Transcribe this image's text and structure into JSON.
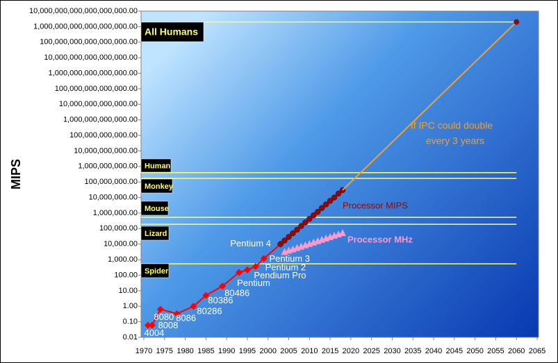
{
  "chart_data": {
    "type": "line",
    "y_label": "MIPS",
    "log_scale": true,
    "grid": false,
    "xlim": [
      1970,
      2065
    ],
    "xticks": [
      1970,
      1975,
      1980,
      1985,
      1990,
      1995,
      2000,
      2005,
      2010,
      2015,
      2020,
      2025,
      2030,
      2035,
      2040,
      2045,
      2050,
      2055,
      2060,
      2065
    ],
    "ylim": [
      0.01,
      1e+19
    ],
    "yticks": [
      0.01,
      {
        "value": 0.1,
        "label": "0.10"
      },
      {
        "value": 1,
        "label": "1.00"
      },
      {
        "value": 10,
        "label": "10.00"
      },
      {
        "value": 100,
        "label": "100.00"
      },
      {
        "value": 1000,
        "label": "1,000.00"
      },
      {
        "value": 10000,
        "label": "10,000.00"
      },
      {
        "value": 100000,
        "label": "100,000.00"
      },
      {
        "value": 1000000,
        "label": "1,000,000.00"
      },
      {
        "value": 10000000,
        "label": "10,000,000.00"
      },
      {
        "value": 100000000,
        "label": "100,000,000.00"
      },
      {
        "value": 1000000000,
        "label": "1,000,000,000.00"
      },
      {
        "value": 10000000000,
        "label": "10,000,000,000.00"
      },
      {
        "value": 100000000000,
        "label": "100,000,000,000.00"
      },
      {
        "value": 1000000000000,
        "label": "1,000,000,000,000.00"
      },
      {
        "value": 10000000000000.0,
        "label": "10,000,000,000,000.00"
      },
      {
        "value": 100000000000000.0,
        "label": "100,000,000,000,000.00"
      },
      {
        "value": 1000000000000000.0,
        "label": "1,000,000,000,000,000.00"
      },
      {
        "value": 1e+16,
        "label": "10,000,000,000,000,000.00"
      },
      {
        "value": 1e+17,
        "label": "100,000,000,000,000,000.00"
      },
      {
        "value": 1e+18,
        "label": "1,000,000,000,000,000,000.00"
      },
      {
        "value": 1e+19,
        "label": "10,000,000,000,000,000,000.00"
      }
    ],
    "series": [
      {
        "color": "#ff0000",
        "marker": "diamond",
        "x": [
          1971,
          1972,
          1974,
          1978,
          1982,
          1985,
          1989,
          1993,
          1995,
          1997,
          1999,
          2003
        ],
        "values": [
          0.06,
          0.06,
          0.64,
          0.33,
          1,
          5,
          20,
          150,
          220,
          360,
          1200,
          10000
        ],
        "point_labels": [
          "4004",
          "8008",
          "8080",
          "8086",
          "80286",
          "80386",
          "80486",
          "Pentium",
          "Pendium Pro",
          "Pentium 2",
          "Pentium 3",
          "Pentium 4"
        ]
      },
      {
        "name": "Processor MIPS",
        "color": "#8b0a0a",
        "marker": "circle",
        "x": [
          2003,
          2004,
          2005,
          2006,
          2007,
          2008,
          2009,
          2010,
          2011,
          2012,
          2013,
          2014,
          2015,
          2016,
          2017,
          2018
        ],
        "values": [
          10000,
          17000,
          29000,
          50000,
          85000,
          145000,
          250000,
          420000,
          720000,
          1200000,
          2100000,
          3600000,
          6100000,
          10000000,
          18000000,
          30000000
        ]
      },
      {
        "name": "Processor MHz",
        "color": "#ff99cc",
        "marker": "triangle",
        "x": [
          2004,
          2005,
          2006,
          2007,
          2008,
          2009,
          2010,
          2011,
          2012,
          2013,
          2014,
          2015,
          2016,
          2017,
          2018
        ],
        "values": [
          3000,
          3700,
          4500,
          5500,
          6700,
          8200,
          10000,
          12300,
          15000,
          18400,
          22500,
          27500,
          33600,
          41000,
          50000
        ]
      },
      {
        "color": "#f0a030",
        "marker": "end",
        "x": [
          2018,
          2060
        ],
        "values": [
          30000000,
          2e+18
        ]
      }
    ],
    "annotations": [
      {
        "text": "If IPC could double",
        "color": "#f0a030"
      },
      {
        "text": "every 3 years",
        "color": "#f0a030"
      }
    ],
    "reference_lines": [
      {
        "label": "All Humans",
        "value": 2e+18
      },
      {
        "label": "Human",
        "value": 400000000
      },
      {
        "label": "Monkey",
        "value": 170000000
      },
      {
        "label": "Mouse",
        "value": 530000
      },
      {
        "label": "Lizard",
        "value": 190000
      },
      {
        "label": "Spider",
        "value": 540
      }
    ],
    "reference_color": "#ffff66"
  }
}
